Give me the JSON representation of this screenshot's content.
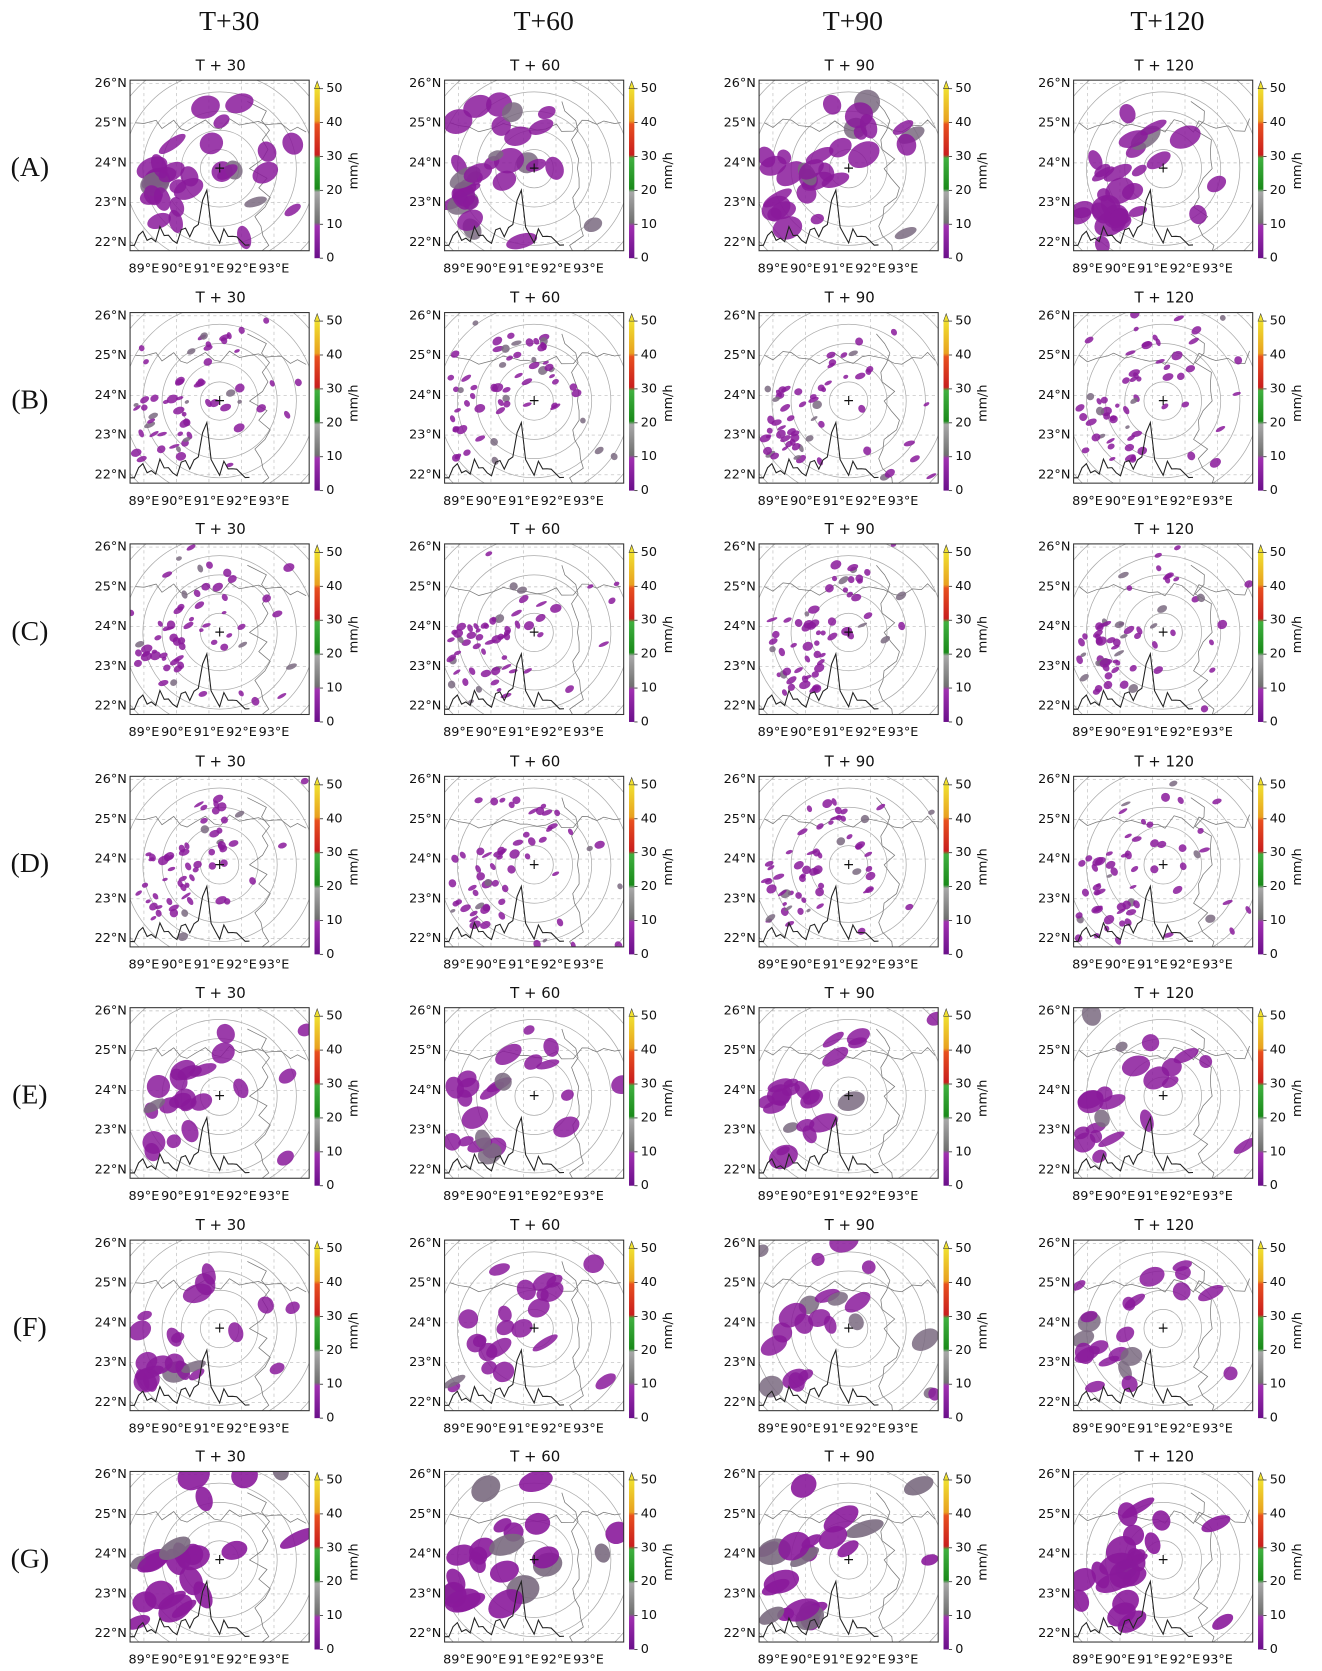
{
  "column_headers": [
    "T+30",
    "T+60",
    "T+90",
    "T+120"
  ],
  "row_labels": [
    "(A)",
    "(B)",
    "(C)",
    "(D)",
    "(E)",
    "(F)",
    "(G)"
  ],
  "panel_titles": [
    "T + 30",
    "T + 60",
    "T + 90",
    "T + 120"
  ],
  "lat_ticks": [
    "26°N",
    "25°N",
    "24°N",
    "23°N",
    "22°N"
  ],
  "lon_ticks": [
    "89°E",
    "90°E",
    "91°E",
    "92°E",
    "93°E"
  ],
  "colorbar": {
    "ticks": [
      0,
      10,
      20,
      30,
      40,
      50
    ],
    "label": "mm/h"
  }
}
